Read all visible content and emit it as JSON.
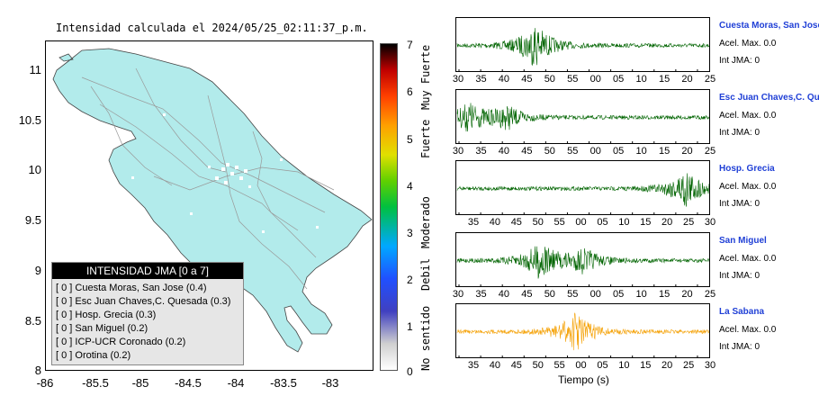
{
  "map": {
    "title": "Intensidad calculada el 2024/05/25_02:11:37_p.m.",
    "yticks": [
      "11",
      "10.5",
      "10",
      "9.5",
      "9",
      "8.5",
      "8"
    ],
    "xticks": [
      "-86",
      "-85.5",
      "-85",
      "-84.5",
      "-84",
      "-83.5",
      "-83"
    ],
    "land_color": "#b2ebeb"
  },
  "colorbar": {
    "ticks": [
      "7",
      "6",
      "5",
      "4",
      "3",
      "2",
      "1",
      "0"
    ],
    "categories": [
      "Muy Fuerte",
      "Fuerte",
      "Moderado",
      "Debil",
      "No sentido"
    ]
  },
  "legend": {
    "header": "INTENSIDAD JMA [0 a 7]",
    "rows": [
      "[ 0 ]  Cuesta Moras, San Jose (0.4)",
      "[ 0 ]  Esc Juan Chaves,C. Quesada (0.3)",
      "[ 0 ]  Hosp. Grecia (0.3)",
      "[ 0 ]  San Miguel (0.2)",
      "[ 0 ]  ICP-UCR Coronado (0.2)",
      "[ 0 ]  Orotina (0.2)"
    ]
  },
  "stations": [
    {
      "name": "Cuesta Moras, San Jose",
      "acel": "Acel. Max. 0.0",
      "int": "Int JMA: 0",
      "color": "#006400",
      "ticks": [
        "30",
        "35",
        "40",
        "45",
        "50",
        "55",
        "00",
        "05",
        "10",
        "15",
        "20",
        "25"
      ]
    },
    {
      "name": "Esc Juan Chaves,C. Quesada",
      "acel": "Acel. Max. 0.0",
      "int": "Int JMA: 0",
      "color": "#006400",
      "ticks": [
        "30",
        "35",
        "40",
        "45",
        "50",
        "55",
        "00",
        "05",
        "10",
        "15",
        "20",
        "25"
      ]
    },
    {
      "name": "Hosp. Grecia",
      "acel": "Acel. Max. 0.0",
      "int": "Int JMA: 0",
      "color": "#006400",
      "ticks": [
        "35",
        "40",
        "45",
        "50",
        "55",
        "00",
        "05",
        "10",
        "15",
        "20",
        "25",
        "30"
      ]
    },
    {
      "name": "San Miguel",
      "acel": "Acel. Max. 0.0",
      "int": "Int JMA: 0",
      "color": "#006400",
      "ticks": [
        "30",
        "35",
        "40",
        "45",
        "50",
        "55",
        "00",
        "05",
        "10",
        "15",
        "20",
        "25"
      ]
    },
    {
      "name": "La Sabana",
      "acel": "Acel. Max. 0.0",
      "int": "Int JMA: 0",
      "color": "#f5a30a",
      "ticks": [
        "35",
        "40",
        "45",
        "50",
        "55",
        "00",
        "05",
        "10",
        "15",
        "20",
        "25",
        "30"
      ]
    }
  ],
  "xlabel": "Tiempo (s)"
}
